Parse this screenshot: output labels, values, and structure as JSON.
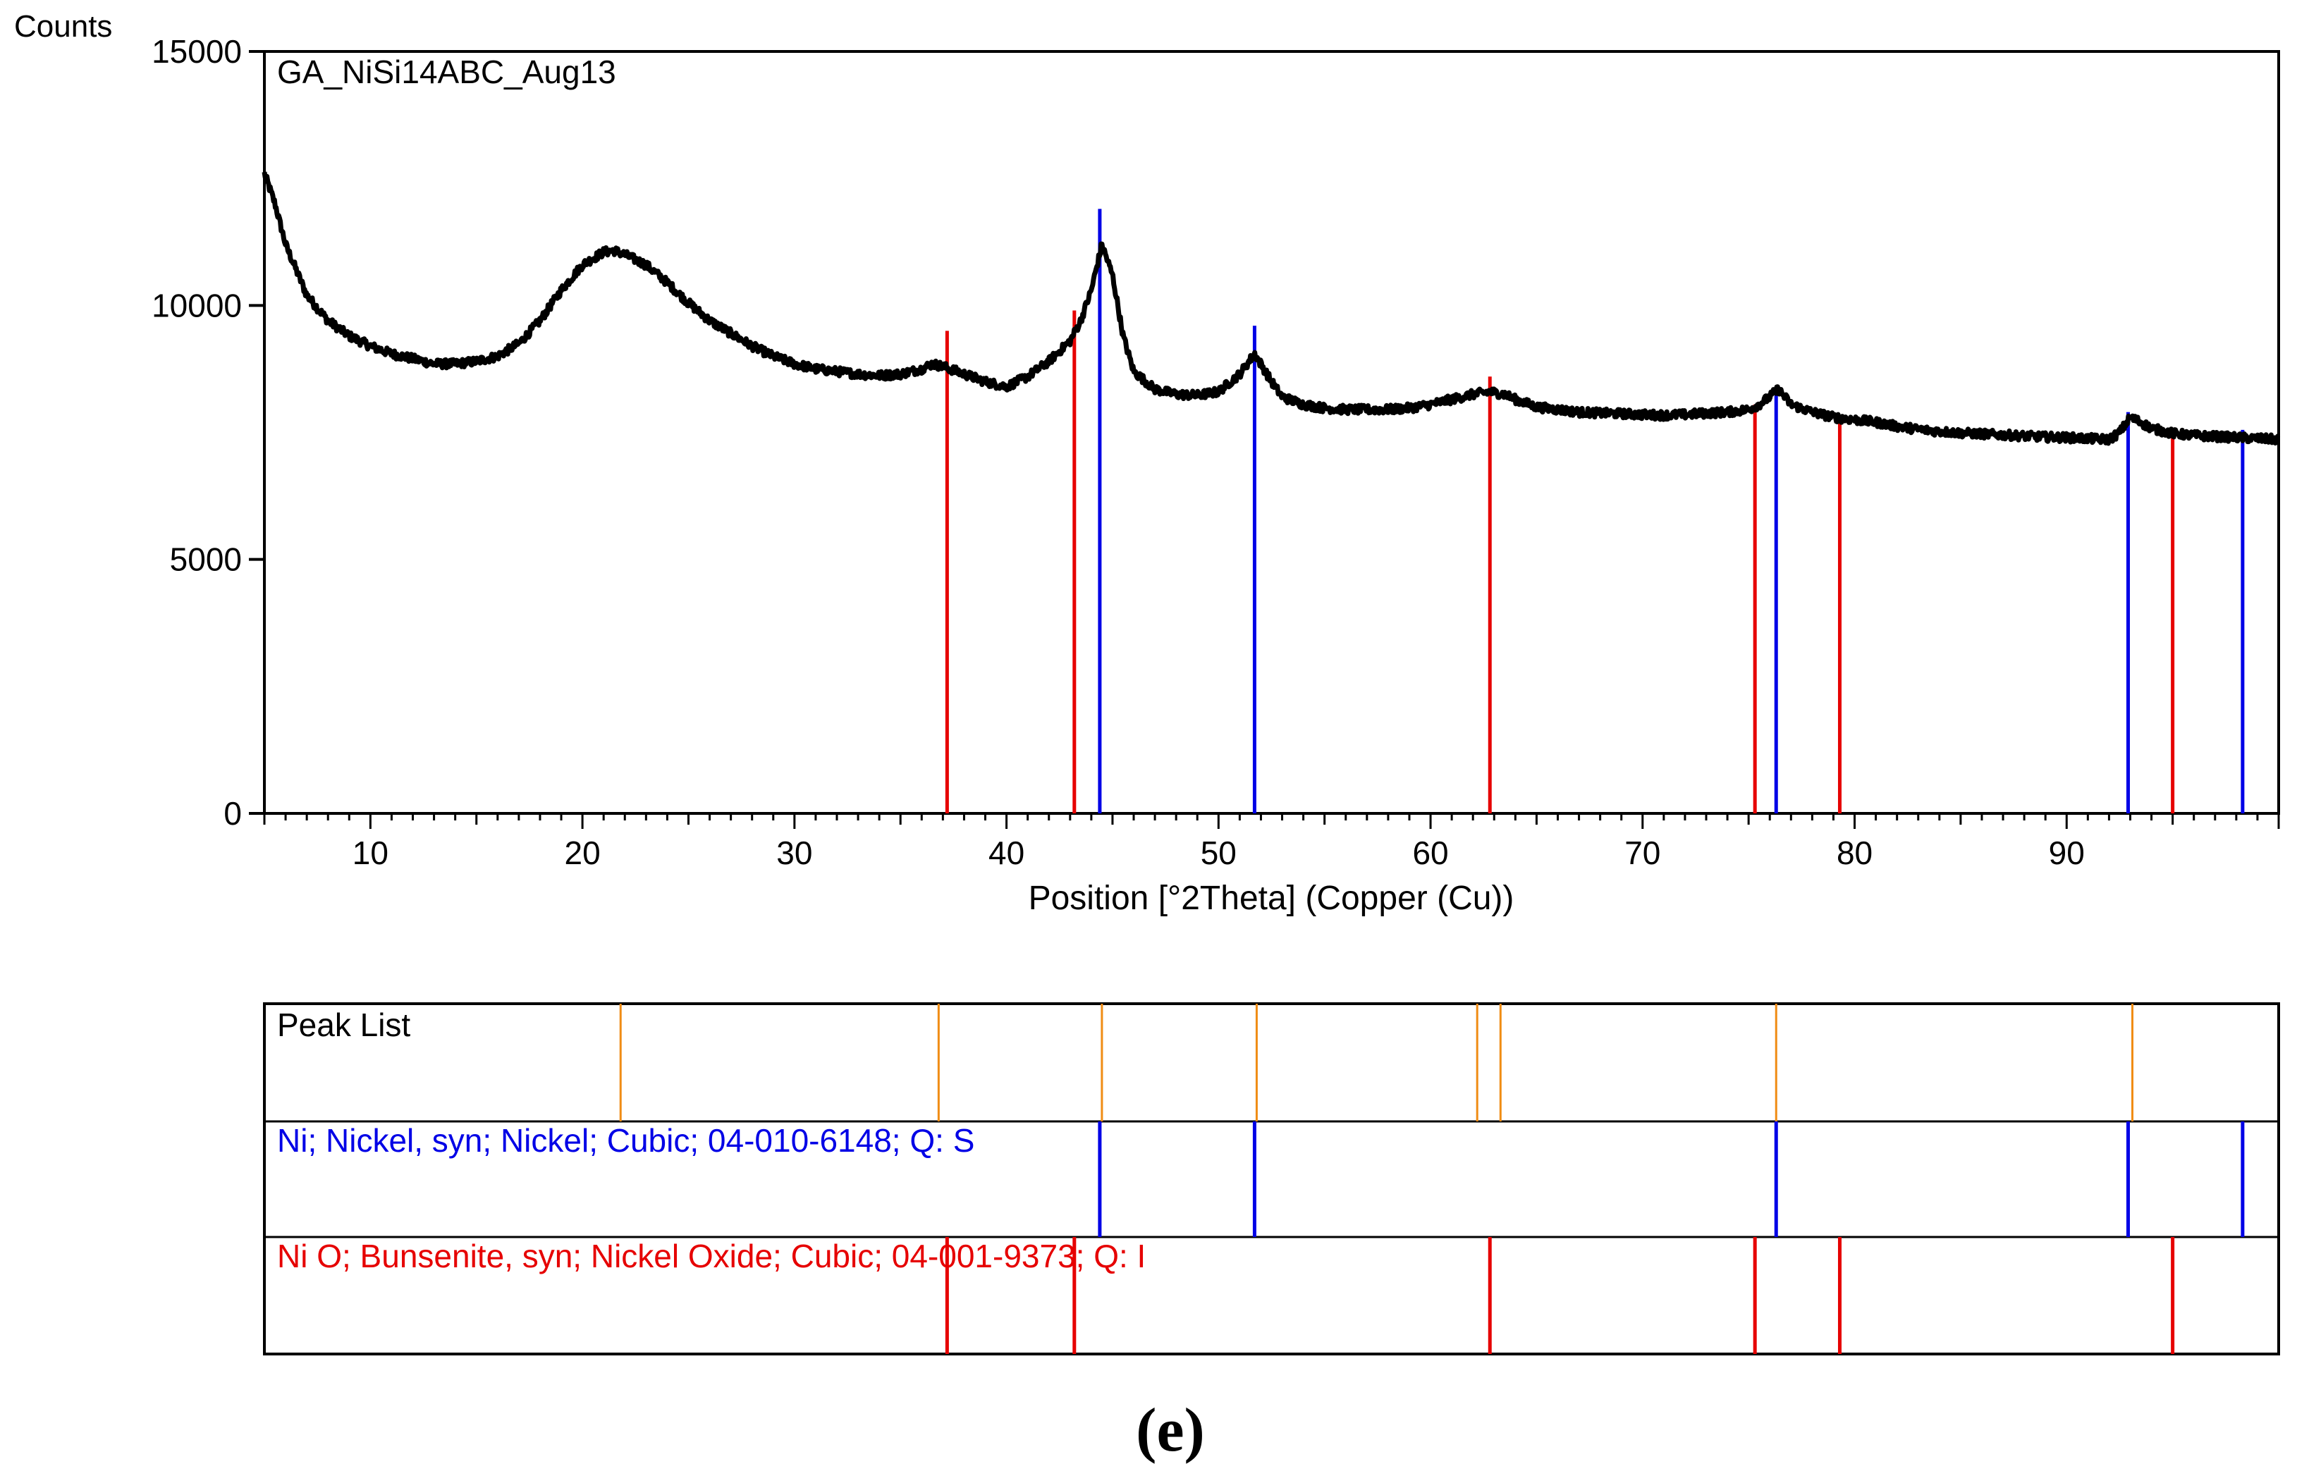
{
  "colors": {
    "background": "#ffffff",
    "trace": "#000000",
    "ni_phase": "#0000e6",
    "nio_phase": "#e60000",
    "peak_list": "#f08c14"
  },
  "chart_data": {
    "type": "line",
    "title": "GA_NiSi14ABC_Aug13",
    "xlabel": "Position [°2Theta] (Copper (Cu))",
    "ylabel": "Counts",
    "xlim": [
      5,
      100
    ],
    "ylim": [
      0,
      15000
    ],
    "x_ticks": [
      10,
      20,
      30,
      40,
      50,
      60,
      70,
      80,
      90
    ],
    "y_ticks": [
      0,
      5000,
      10000,
      15000
    ],
    "grid": false,
    "series": [
      {
        "x": [
          5,
          5.5,
          6,
          7,
          8,
          9,
          10,
          11,
          12,
          13,
          14,
          15,
          16,
          17,
          18,
          19,
          20,
          21,
          21.5,
          22,
          23,
          24,
          25,
          26,
          27,
          28,
          29,
          30,
          31,
          32,
          33,
          34,
          35,
          36,
          36.5,
          37,
          38,
          39,
          40,
          41,
          42,
          43,
          43.5,
          44,
          44.5,
          45,
          45.5,
          46,
          47,
          48,
          49,
          50,
          51,
          51.7,
          52.5,
          53,
          54,
          55,
          56,
          57,
          58,
          59,
          60,
          61,
          62,
          62.8,
          63.5,
          64,
          65,
          66,
          67,
          68,
          69,
          70,
          71,
          72,
          73,
          74,
          75,
          75.5,
          76,
          76.4,
          77,
          78,
          79,
          80,
          81,
          82,
          83,
          84,
          85,
          86,
          87,
          88,
          89,
          90,
          91,
          92,
          92.5,
          93,
          93.5,
          94,
          95,
          96,
          97,
          98,
          99,
          100
        ],
        "y": [
          12600,
          12000,
          11200,
          10200,
          9700,
          9400,
          9200,
          9050,
          8950,
          8850,
          8850,
          8900,
          9000,
          9250,
          9700,
          10300,
          10800,
          11050,
          11080,
          11000,
          10800,
          10450,
          10050,
          9700,
          9450,
          9200,
          9000,
          8850,
          8750,
          8700,
          8650,
          8620,
          8650,
          8750,
          8850,
          8800,
          8650,
          8500,
          8400,
          8600,
          8900,
          9300,
          9700,
          10300,
          11200,
          10600,
          9400,
          8700,
          8350,
          8250,
          8230,
          8300,
          8650,
          9050,
          8500,
          8200,
          8050,
          7980,
          7950,
          7950,
          7950,
          7980,
          8050,
          8150,
          8250,
          8300,
          8250,
          8150,
          8000,
          7950,
          7900,
          7880,
          7870,
          7850,
          7840,
          7850,
          7880,
          7900,
          7950,
          8050,
          8200,
          8350,
          8050,
          7900,
          7800,
          7750,
          7700,
          7620,
          7560,
          7520,
          7490,
          7470,
          7450,
          7430,
          7410,
          7400,
          7380,
          7360,
          7500,
          7800,
          7700,
          7580,
          7480,
          7440,
          7420,
          7400,
          7380,
          7360
        ]
      }
    ],
    "reference_markers": [
      {
        "name": "Ni O; Bunsenite, syn; Nickel Oxide; Cubic; 04-001-9373; Q: I",
        "color": "#e60000",
        "x": [
          37.2,
          43.2,
          62.8,
          75.3,
          79.3,
          95.0
        ],
        "y": [
          9500,
          9900,
          8600,
          8050,
          7800,
          7500
        ]
      },
      {
        "name": "Ni; Nickel, syn; Nickel; Cubic; 04-010-6148; Q: S",
        "color": "#0000e6",
        "x": [
          44.4,
          51.7,
          76.3,
          92.9,
          98.3
        ],
        "y": [
          11900,
          9600,
          8350,
          7900,
          7550
        ]
      }
    ],
    "stick_panel": {
      "rows": [
        {
          "label": "Peak List",
          "color": "#f08c14",
          "x": [
            21.8,
            36.8,
            44.5,
            51.8,
            62.2,
            63.3,
            76.3,
            93.1
          ]
        },
        {
          "label": "Ni; Nickel, syn; Nickel; Cubic; 04-010-6148; Q: S",
          "color": "#0000e6",
          "x": [
            44.4,
            51.7,
            76.3,
            92.9,
            98.3
          ]
        },
        {
          "label": "Ni O; Bunsenite, syn; Nickel Oxide; Cubic; 04-001-9373; Q: I",
          "color": "#e60000",
          "x": [
            37.2,
            43.2,
            62.8,
            75.3,
            79.3,
            95.0
          ]
        }
      ]
    }
  },
  "caption": "(e)"
}
